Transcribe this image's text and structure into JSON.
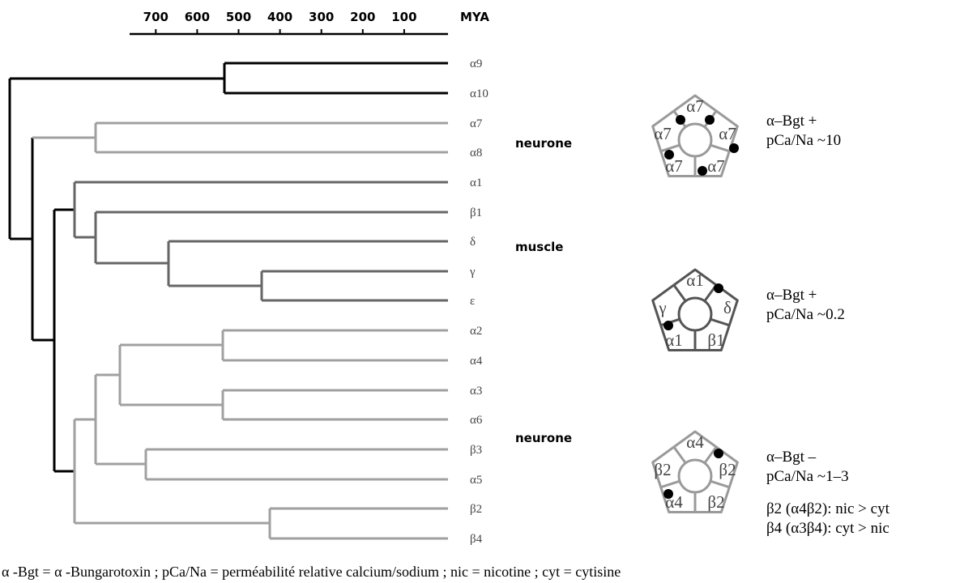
{
  "axis": {
    "ticks": [
      700,
      600,
      500,
      400,
      300,
      200,
      100
    ],
    "unit": "MYA"
  },
  "leaves": [
    "α9",
    "α10",
    "α7",
    "α8",
    "α1",
    "β1",
    "δ",
    "γ",
    "ε",
    "α2",
    "α4",
    "α3",
    "α6",
    "β3",
    "α5",
    "β2",
    "β4"
  ],
  "groups": [
    "neurone",
    "muscle",
    "neurone"
  ],
  "receptors": [
    {
      "subunits": [
        "α7",
        "α7",
        "α7",
        "α7",
        "α7"
      ],
      "properties": [
        "α–Bgt +",
        "pCa/Na ~10"
      ]
    },
    {
      "subunits": [
        "α1",
        "γ",
        "δ",
        "α1",
        "β1"
      ],
      "properties": [
        "α–Bgt +",
        "pCa/Na ~0.2"
      ]
    },
    {
      "subunits": [
        "α4",
        "β2",
        "β2",
        "α4",
        "β2"
      ],
      "properties": [
        "α–Bgt –",
        "pCa/Na ~1–3",
        "β2 (α4β2): nic > cyt",
        "β4 (α3β4): cyt > nic"
      ]
    }
  ],
  "footnote": "α -Bgt = α -Bungarotoxin ; pCa/Na = perméabilité relative calcium/sodium ; nic = nicotine ; cyt = cytisine"
}
